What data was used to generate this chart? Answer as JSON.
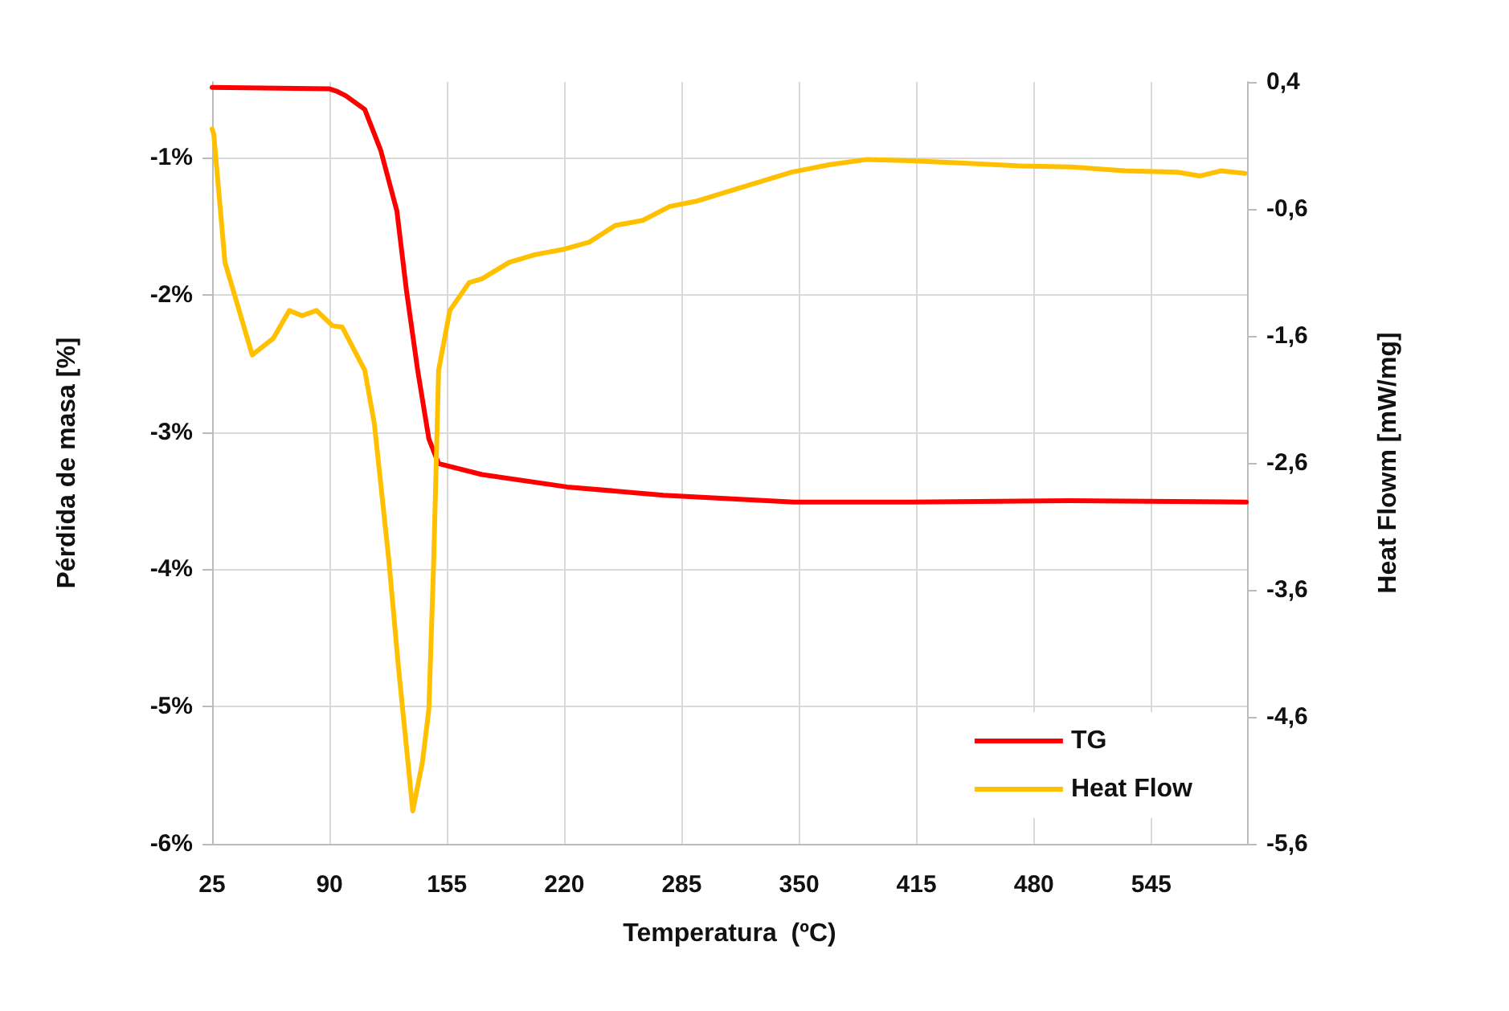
{
  "chart_data": {
    "type": "line",
    "xlabel": "Temperatura  (ºC)",
    "ylabel": "Pérdida de masa [%]",
    "y2label": "Heat Flowm [mW/mg]",
    "xlim": [
      25,
      598
    ],
    "xticks": [
      25,
      90,
      155,
      220,
      285,
      350,
      415,
      480,
      545
    ],
    "ylim": [
      -6,
      -0.45
    ],
    "yticks": [
      {
        "value": -1,
        "label": "-1%"
      },
      {
        "value": -2,
        "label": "-2%"
      },
      {
        "value": -3,
        "label": "-3%"
      },
      {
        "value": -4,
        "label": "-4%"
      },
      {
        "value": -5,
        "label": "-5%"
      },
      {
        "value": -6,
        "label": "-6%"
      }
    ],
    "y2lim": [
      -5.6,
      0.4
    ],
    "y2ticks": [
      {
        "value": 0.4,
        "label": "0,4"
      },
      {
        "value": -0.6,
        "label": "-0,6"
      },
      {
        "value": -1.6,
        "label": "-1,6"
      },
      {
        "value": -2.6,
        "label": "-2,6"
      },
      {
        "value": -3.6,
        "label": "-3,6"
      },
      {
        "value": -4.6,
        "label": "-4,6"
      },
      {
        "value": -5.6,
        "label": "-5,6"
      }
    ],
    "grid": true,
    "legend": "bottom right",
    "marker": "none",
    "line_style": "solid",
    "series": [
      {
        "name": "TG",
        "color": "#ff0000",
        "x": [
          25,
          90,
          94.4,
          99,
          109.5,
          118.4,
          127.3,
          132.6,
          138.8,
          145,
          150.4,
          174.4,
          221.5,
          274.9,
          347,
          411.8,
          500,
          597.6
        ],
        "values": [
          -0.49,
          -0.5,
          -0.52,
          -0.55,
          -0.65,
          -0.95,
          -1.39,
          -1.97,
          -2.55,
          -3.05,
          -3.23,
          -3.31,
          -3.4,
          -3.46,
          -3.51,
          -3.51,
          -3.5,
          -3.51
        ]
      },
      {
        "name": "Heat Flow",
        "color": "#ffc000",
        "axis": "y2",
        "x": [
          25,
          25.9,
          32.1,
          47.2,
          58.8,
          67.7,
          74.8,
          82.8,
          91.7,
          97,
          109.5,
          114.8,
          122.8,
          128.1,
          136.1,
          141.4,
          145,
          147.7,
          150.4,
          156.6,
          167.3,
          174.4,
          189.5,
          203.8,
          218.9,
          234,
          248.2,
          263.4,
          278.4,
          292.7,
          322.9,
          346,
          367.3,
          387.8,
          411.8,
          441.2,
          470.5,
          500.7,
          530.2,
          559.5,
          572,
          583.5,
          596.8
        ],
        "values": [
          0.03,
          -0.01,
          -1.02,
          -1.75,
          -1.62,
          -1.4,
          -1.44,
          -1.4,
          -1.52,
          -1.53,
          -1.87,
          -2.29,
          -3.36,
          -4.2,
          -5.34,
          -4.96,
          -4.54,
          -3.36,
          -1.87,
          -1.4,
          -1.18,
          -1.15,
          -1.02,
          -0.96,
          -0.92,
          -0.86,
          -0.73,
          -0.69,
          -0.58,
          -0.54,
          -0.41,
          -0.31,
          -0.25,
          -0.21,
          -0.22,
          -0.24,
          -0.26,
          -0.27,
          -0.3,
          -0.31,
          -0.34,
          -0.3,
          -0.32
        ]
      }
    ]
  }
}
